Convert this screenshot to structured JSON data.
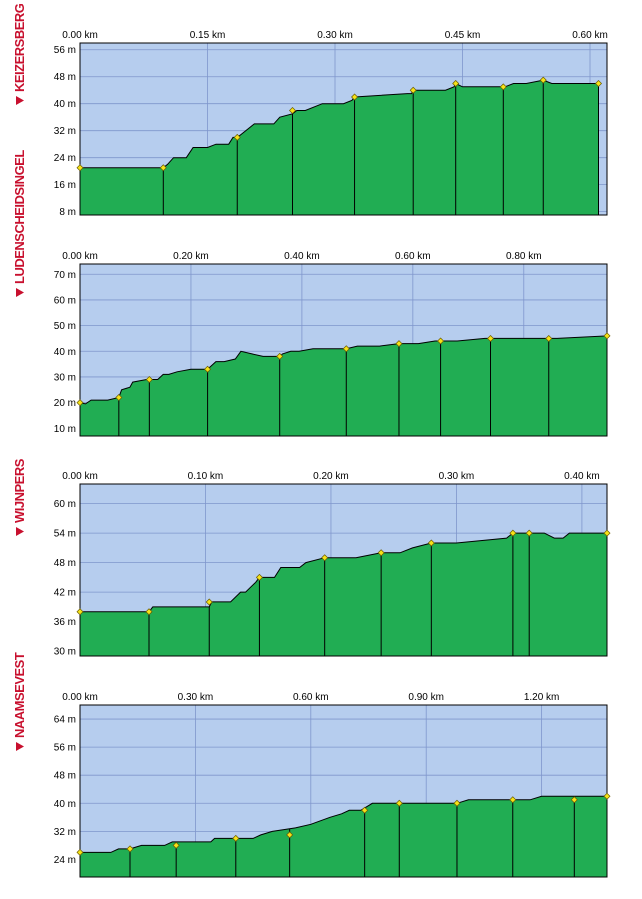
{
  "colors": {
    "sky": "#b6cdee",
    "ground": "#21ad53",
    "grid": "#7f96cc",
    "marker": "#f6e318",
    "label": "#c8102e"
  },
  "chart_data": [
    {
      "type": "area",
      "climb": "KEIZERSBERG",
      "x_unit": "km",
      "y_unit": "m",
      "xlim": [
        0,
        0.62
      ],
      "ylim": [
        7,
        58
      ],
      "x_ticks": [
        0,
        0.15,
        0.3,
        0.45,
        0.6
      ],
      "x_tick_labels": [
        "0.00 km",
        "0.15 km",
        "0.30 km",
        "0.45 km",
        "0.60 km"
      ],
      "y_ticks": [
        8,
        16,
        24,
        32,
        40,
        48,
        56
      ],
      "y_tick_labels": [
        "8 m",
        "16 m",
        "24 m",
        "32 m",
        "40 m",
        "48 m",
        "56 m"
      ],
      "profile": [
        [
          0,
          21
        ],
        [
          0.098,
          21
        ],
        [
          0.103,
          22
        ],
        [
          0.11,
          24
        ],
        [
          0.125,
          24
        ],
        [
          0.133,
          27
        ],
        [
          0.15,
          27
        ],
        [
          0.16,
          28
        ],
        [
          0.175,
          28
        ],
        [
          0.18,
          30
        ],
        [
          0.185,
          30
        ],
        [
          0.19,
          31
        ],
        [
          0.205,
          34
        ],
        [
          0.228,
          34
        ],
        [
          0.235,
          36
        ],
        [
          0.25,
          37
        ],
        [
          0.255,
          38
        ],
        [
          0.265,
          38
        ],
        [
          0.285,
          40
        ],
        [
          0.31,
          40
        ],
        [
          0.32,
          41
        ],
        [
          0.323,
          42
        ],
        [
          0.385,
          43
        ],
        [
          0.39,
          43
        ],
        [
          0.392,
          44
        ],
        [
          0.43,
          44
        ],
        [
          0.44,
          45
        ],
        [
          0.442,
          46
        ],
        [
          0.45,
          45
        ],
        [
          0.498,
          45
        ],
        [
          0.5,
          45
        ],
        [
          0.51,
          46
        ],
        [
          0.525,
          46
        ],
        [
          0.545,
          47
        ],
        [
          0.555,
          46
        ],
        [
          0.605,
          46
        ],
        [
          0.61,
          46
        ]
      ],
      "segment_markers": [
        [
          0,
          21
        ],
        [
          0.098,
          21
        ],
        [
          0.185,
          30
        ],
        [
          0.25,
          38
        ],
        [
          0.323,
          42
        ],
        [
          0.392,
          44
        ],
        [
          0.442,
          46
        ],
        [
          0.498,
          45
        ],
        [
          0.545,
          47
        ],
        [
          0.61,
          46
        ]
      ]
    },
    {
      "type": "area",
      "climb": "LUDENSCHEIDSINGEL",
      "x_unit": "km",
      "y_unit": "m",
      "xlim": [
        0,
        0.95
      ],
      "ylim": [
        7,
        74
      ],
      "x_ticks": [
        0,
        0.2,
        0.4,
        0.6,
        0.8
      ],
      "x_tick_labels": [
        "0.00 km",
        "0.20 km",
        "0.40 km",
        "0.60 km",
        "0.80 km"
      ],
      "y_ticks": [
        10,
        20,
        30,
        40,
        50,
        60,
        70
      ],
      "y_tick_labels": [
        "10 m",
        "20 m",
        "30 m",
        "40 m",
        "50 m",
        "60 m",
        "70 m"
      ],
      "profile": [
        [
          0,
          20
        ],
        [
          0.01,
          19.5
        ],
        [
          0.02,
          21
        ],
        [
          0.05,
          21
        ],
        [
          0.07,
          22
        ],
        [
          0.075,
          25
        ],
        [
          0.09,
          26
        ],
        [
          0.095,
          28
        ],
        [
          0.12,
          29
        ],
        [
          0.14,
          29
        ],
        [
          0.15,
          31
        ],
        [
          0.16,
          31
        ],
        [
          0.175,
          32
        ],
        [
          0.2,
          33
        ],
        [
          0.23,
          33
        ],
        [
          0.245,
          36
        ],
        [
          0.26,
          36
        ],
        [
          0.28,
          37
        ],
        [
          0.29,
          40
        ],
        [
          0.31,
          39
        ],
        [
          0.33,
          38
        ],
        [
          0.36,
          38
        ],
        [
          0.365,
          39
        ],
        [
          0.38,
          40
        ],
        [
          0.395,
          40
        ],
        [
          0.42,
          41
        ],
        [
          0.44,
          41
        ],
        [
          0.48,
          41
        ],
        [
          0.5,
          42
        ],
        [
          0.54,
          42
        ],
        [
          0.575,
          43
        ],
        [
          0.61,
          43
        ],
        [
          0.64,
          44
        ],
        [
          0.68,
          44
        ],
        [
          0.73,
          45
        ],
        [
          0.8,
          45
        ],
        [
          0.84,
          45
        ],
        [
          0.86,
          45
        ],
        [
          0.95,
          46
        ]
      ],
      "segment_markers": [
        [
          0,
          20
        ],
        [
          0.07,
          22
        ],
        [
          0.125,
          29
        ],
        [
          0.23,
          33
        ],
        [
          0.36,
          38
        ],
        [
          0.48,
          41
        ],
        [
          0.575,
          43
        ],
        [
          0.65,
          44
        ],
        [
          0.74,
          45
        ],
        [
          0.845,
          45
        ],
        [
          0.95,
          46
        ]
      ]
    },
    {
      "type": "area",
      "climb": "WIJNPERS",
      "x_unit": "km",
      "y_unit": "m",
      "xlim": [
        0,
        0.42
      ],
      "ylim": [
        29,
        64
      ],
      "x_ticks": [
        0,
        0.1,
        0.2,
        0.3,
        0.4
      ],
      "x_tick_labels": [
        "0.00 km",
        "0.10 km",
        "0.20 km",
        "0.30 km",
        "0.40 km"
      ],
      "y_ticks": [
        30,
        36,
        42,
        48,
        54,
        60
      ],
      "y_tick_labels": [
        "30 m",
        "36 m",
        "42 m",
        "48 m",
        "54 m",
        "60 m"
      ],
      "profile": [
        [
          0,
          38
        ],
        [
          0.055,
          38
        ],
        [
          0.058,
          39
        ],
        [
          0.103,
          39
        ],
        [
          0.105,
          40
        ],
        [
          0.12,
          40
        ],
        [
          0.128,
          42
        ],
        [
          0.132,
          42
        ],
        [
          0.136,
          43
        ],
        [
          0.14,
          44
        ],
        [
          0.143,
          45
        ],
        [
          0.145,
          45
        ],
        [
          0.155,
          45
        ],
        [
          0.16,
          47
        ],
        [
          0.175,
          47
        ],
        [
          0.18,
          48
        ],
        [
          0.195,
          49
        ],
        [
          0.22,
          49
        ],
        [
          0.24,
          50
        ],
        [
          0.255,
          50
        ],
        [
          0.265,
          51
        ],
        [
          0.28,
          52
        ],
        [
          0.3,
          52
        ],
        [
          0.34,
          53
        ],
        [
          0.345,
          54
        ],
        [
          0.355,
          54
        ],
        [
          0.37,
          54
        ],
        [
          0.378,
          53
        ],
        [
          0.385,
          53
        ],
        [
          0.39,
          54
        ],
        [
          0.42,
          54
        ]
      ],
      "segment_markers": [
        [
          0,
          38
        ],
        [
          0.055,
          38
        ],
        [
          0.103,
          40
        ],
        [
          0.143,
          45
        ],
        [
          0.195,
          49
        ],
        [
          0.24,
          50
        ],
        [
          0.28,
          52
        ],
        [
          0.345,
          54
        ],
        [
          0.358,
          54
        ],
        [
          0.42,
          54
        ]
      ]
    },
    {
      "type": "area",
      "climb": "NAAMSEVEST",
      "x_unit": "km",
      "y_unit": "m",
      "xlim": [
        0,
        1.37
      ],
      "ylim": [
        19,
        68
      ],
      "x_ticks": [
        0,
        0.3,
        0.6,
        0.9,
        1.2
      ],
      "x_tick_labels": [
        "0.00 km",
        "0.30 km",
        "0.60 km",
        "0.90 km",
        "1.20 km"
      ],
      "y_ticks": [
        24,
        32,
        40,
        48,
        56,
        64
      ],
      "y_tick_labels": [
        "24 m",
        "32 m",
        "40 m",
        "48 m",
        "56 m",
        "64 m"
      ],
      "profile": [
        [
          0,
          26
        ],
        [
          0.08,
          26
        ],
        [
          0.1,
          27
        ],
        [
          0.13,
          27
        ],
        [
          0.16,
          28
        ],
        [
          0.22,
          28
        ],
        [
          0.24,
          29
        ],
        [
          0.3,
          29
        ],
        [
          0.34,
          29
        ],
        [
          0.35,
          30
        ],
        [
          0.4,
          30
        ],
        [
          0.45,
          30
        ],
        [
          0.47,
          31
        ],
        [
          0.5,
          32
        ],
        [
          0.56,
          33
        ],
        [
          0.6,
          34
        ],
        [
          0.65,
          36
        ],
        [
          0.68,
          37
        ],
        [
          0.7,
          38
        ],
        [
          0.73,
          38
        ],
        [
          0.76,
          40
        ],
        [
          0.84,
          40
        ],
        [
          0.91,
          40
        ],
        [
          0.98,
          40
        ],
        [
          1.01,
          41
        ],
        [
          1.05,
          41
        ],
        [
          1.1,
          41
        ],
        [
          1.15,
          41
        ],
        [
          1.17,
          41
        ],
        [
          1.2,
          42
        ],
        [
          1.37,
          42
        ]
      ],
      "segment_markers": [
        [
          0,
          26
        ],
        [
          0.13,
          27
        ],
        [
          0.25,
          28
        ],
        [
          0.405,
          30
        ],
        [
          0.545,
          31
        ],
        [
          0.74,
          38
        ],
        [
          0.83,
          40
        ],
        [
          0.98,
          40
        ],
        [
          1.125,
          41
        ],
        [
          1.285,
          41
        ],
        [
          1.37,
          42
        ]
      ]
    }
  ]
}
